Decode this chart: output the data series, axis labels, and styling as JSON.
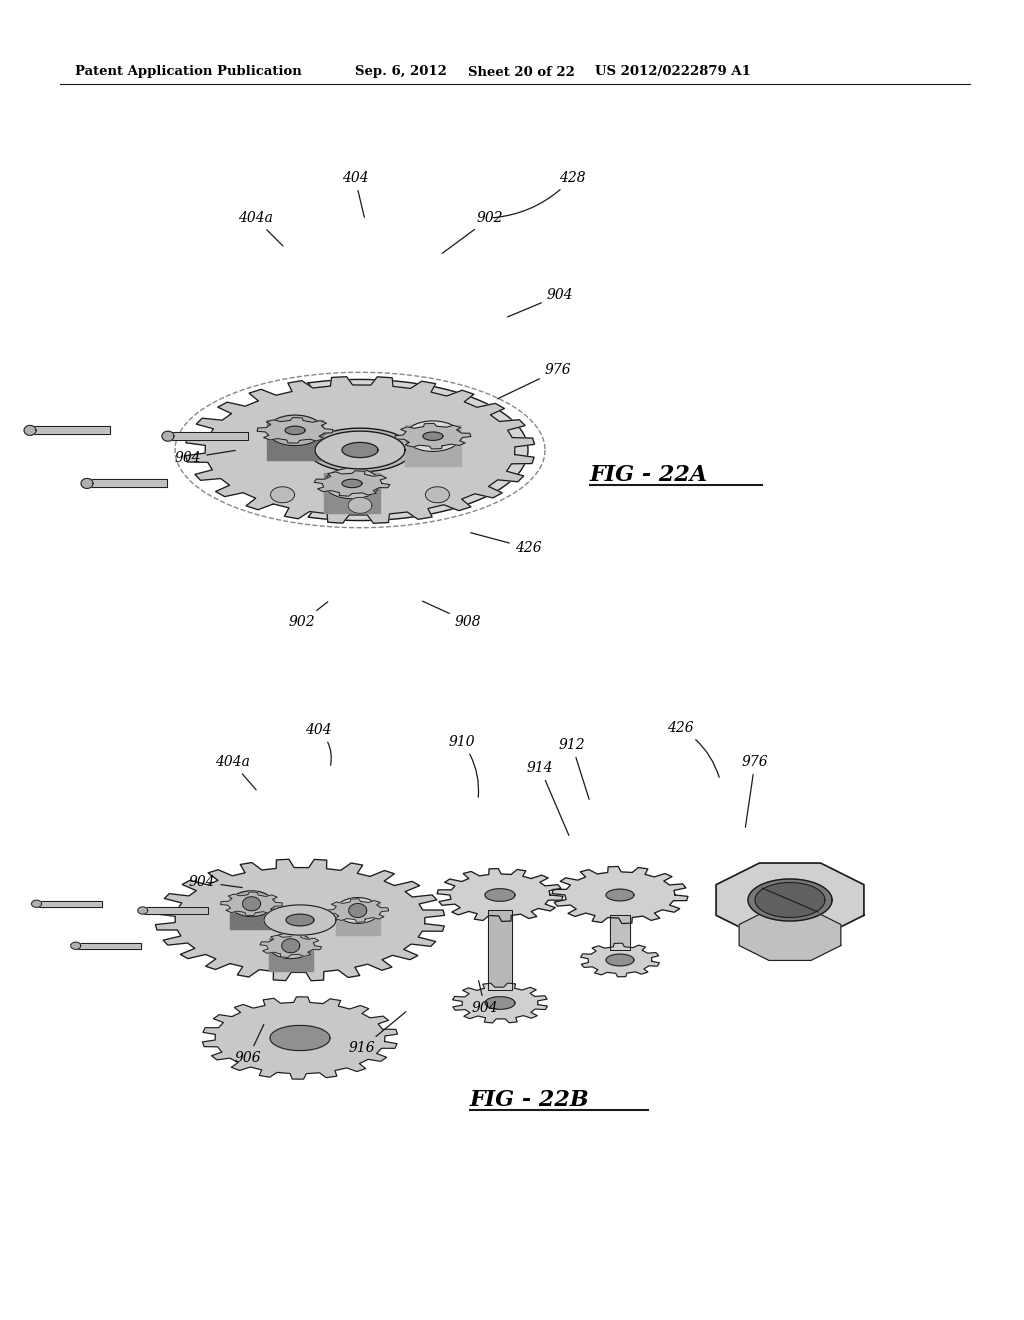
{
  "page_width": 10.24,
  "page_height": 13.2,
  "background_color": "#ffffff",
  "header_text": "Patent Application Publication",
  "header_date": "Sep. 6, 2012",
  "header_sheet": "Sheet 20 of 22",
  "header_patent": "US 2012/0222879 A1",
  "fig22a_label": "FIG - 22A",
  "fig22b_label": "FIG - 22B",
  "lc": "#1a1a1a",
  "fc_light": "#e8e8e8",
  "fc_mid": "#cccccc",
  "fc_dark": "#aaaaaa"
}
